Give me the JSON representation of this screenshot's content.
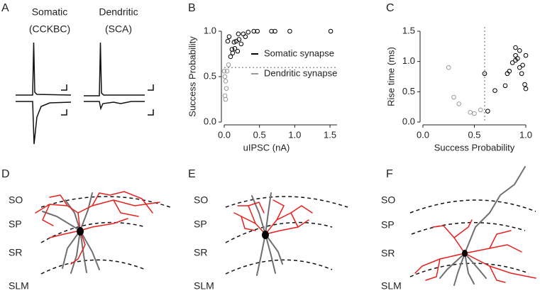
{
  "panel_labels": [
    "A",
    "B",
    "C",
    "D",
    "E",
    "F"
  ],
  "traces": [
    {
      "label": [
        "Somatic",
        "(CCKBC)"
      ]
    },
    {
      "label": [
        "Dendritic",
        "(SCA)"
      ]
    }
  ],
  "morphology": [
    {
      "layers": [
        "SO",
        "SP",
        "SR",
        "SLM"
      ]
    },
    {
      "layers": [
        "SO",
        "SP",
        "SR",
        "SLM"
      ]
    },
    {
      "layers": [
        "SO",
        "SP",
        "SR",
        "SLM"
      ]
    }
  ],
  "chart_data": [
    {
      "type": "scatter",
      "x_label": "uIPSC (nA)",
      "y_label": "Success Probability",
      "xlim": [
        0,
        1.6
      ],
      "ylim": [
        0,
        1.0
      ],
      "xticks": [
        {
          "value": 0,
          "label": "0.0"
        },
        0.5,
        {
          "value": 1,
          "label": "1.0"
        },
        1.5
      ],
      "yticks": [
        {
          "value": 0,
          "label": "0.0"
        },
        0.5,
        {
          "value": 1,
          "label": "1.0"
        }
      ],
      "reference_line": {
        "axis": "y",
        "value": 0.6
      },
      "legend": "right",
      "series": [
        {
          "name": "Somatic synapse",
          "color": "#000000",
          "x": [
            0.05,
            0.07,
            0.09,
            0.11,
            0.12,
            0.14,
            0.15,
            0.17,
            0.19,
            0.2,
            0.21,
            0.24,
            0.27,
            0.3,
            0.34,
            0.42,
            0.47,
            0.67,
            0.72,
            0.93,
            1.51
          ],
          "values": [
            0.89,
            0.94,
            0.72,
            0.8,
            0.76,
            0.88,
            0.81,
            0.89,
            0.78,
            0.97,
            0.91,
            0.86,
            0.97,
            0.94,
            0.99,
            1.0,
            1.0,
            1.0,
            1.0,
            1.0,
            1.0
          ]
        },
        {
          "name": "Dendritic synapse",
          "color": "#999999",
          "x": [
            0.0,
            0.01,
            0.02,
            0.03,
            0.01,
            0.02,
            0.06,
            0.04
          ],
          "values": [
            0.56,
            0.5,
            0.45,
            0.37,
            0.29,
            0.25,
            0.63,
            0.56
          ]
        }
      ]
    },
    {
      "type": "scatter",
      "x_label": "Success Probability",
      "y_label": "Rise time (ms)",
      "xlim": [
        0,
        1.0
      ],
      "ylim": [
        0,
        1.5
      ],
      "xticks": [
        {
          "value": 0,
          "label": "0.0"
        },
        0.5,
        {
          "value": 1,
          "label": "1.0"
        }
      ],
      "yticks": [
        {
          "value": 0,
          "label": "0.0"
        },
        0.5,
        {
          "value": 1,
          "label": "1.0"
        },
        1.5
      ],
      "reference_line": {
        "axis": "x",
        "value": 0.6
      },
      "series": [
        {
          "color": "#000000",
          "x": [
            0.6,
            0.63,
            0.7,
            0.8,
            0.82,
            0.84,
            0.87,
            0.9,
            0.9,
            0.92,
            0.94,
            0.94,
            0.97,
            0.96,
            0.99,
            1.0,
            1.0,
            0.9
          ],
          "values": [
            0.8,
            0.18,
            0.52,
            0.6,
            0.8,
            0.84,
            0.98,
            1.02,
            1.1,
            1.05,
            1.18,
            0.9,
            0.94,
            0.8,
            0.62,
            0.55,
            1.1,
            1.23
          ]
        },
        {
          "color": "#999999",
          "x": [
            0.25,
            0.3,
            0.35,
            0.46,
            0.5,
            0.56
          ],
          "values": [
            0.9,
            0.41,
            0.3,
            0.16,
            0.14,
            0.2
          ]
        }
      ]
    }
  ]
}
